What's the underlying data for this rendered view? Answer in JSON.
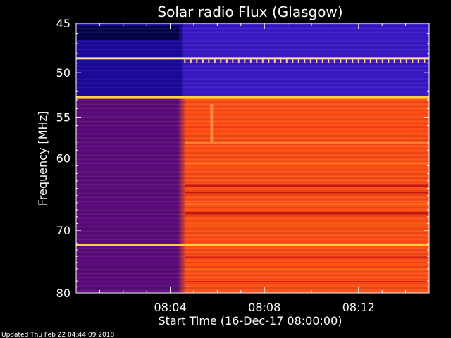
{
  "chart_data": {
    "type": "heatmap",
    "title": "Solar radio Flux (Glasgow)",
    "ylabel": "Frequency [MHz]",
    "xlabel": "Start Time (16-Dec-17 08:00:00)",
    "footer": "Updated Thu Feb 22 04:44:09 2018",
    "x_unit": "minutes after 08:00:00",
    "xlim": [
      0,
      15
    ],
    "ylim": [
      45,
      80
    ],
    "y_scale": "log",
    "y_inverted": true,
    "x_ticks": [
      {
        "value": 4,
        "label": "08:04"
      },
      {
        "value": 8,
        "label": "08:08"
      },
      {
        "value": 12,
        "label": "08:12"
      }
    ],
    "y_ticks": [
      {
        "value": 45,
        "label": "45"
      },
      {
        "value": 50,
        "label": "50"
      },
      {
        "value": 55,
        "label": "55"
      },
      {
        "value": 60,
        "label": "60"
      },
      {
        "value": 70,
        "label": "70"
      },
      {
        "value": 80,
        "label": "80"
      }
    ],
    "event_onset_minutes": 4.5,
    "bright_bands_mhz": [
      48.5,
      52.7,
      72.2
    ],
    "colors": {
      "background": "#000000",
      "quiet_low_band": "#1c0a9c",
      "quiet_high_band": "#5c0c7c",
      "active": "#ff5018",
      "active_bright": "#ff8020",
      "band_line": "#ffd040"
    }
  }
}
